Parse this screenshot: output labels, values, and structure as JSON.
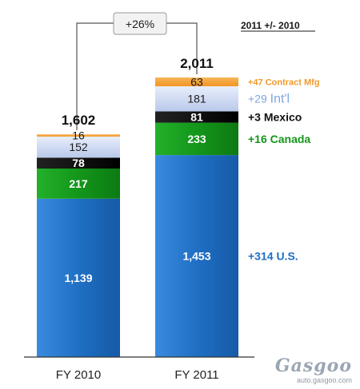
{
  "chart_data": {
    "type": "bar",
    "stacked": true,
    "categories": [
      "FY 2010",
      "FY 2011"
    ],
    "totals": [
      "1,602",
      "2,011"
    ],
    "series": [
      {
        "name": "U.S.",
        "values": [
          1139,
          1453
        ],
        "labels": [
          "1,139",
          "1,453"
        ],
        "delta": "+314",
        "color": "#1f6fc4"
      },
      {
        "name": "Canada",
        "values": [
          217,
          233
        ],
        "labels": [
          "217",
          "233"
        ],
        "delta": "+16",
        "color": "#14961b"
      },
      {
        "name": "Mexico",
        "values": [
          78,
          81
        ],
        "labels": [
          "78",
          "81"
        ],
        "delta": "+3",
        "color": "#111111"
      },
      {
        "name": "Int'l",
        "values": [
          152,
          181
        ],
        "labels": [
          "152",
          "181"
        ],
        "delta": "+29",
        "color": "#c7d3ee"
      },
      {
        "name": "Contract Mfg",
        "values": [
          16,
          63
        ],
        "labels": [
          "16",
          "63"
        ],
        "delta": "+47",
        "color": "#f5a43b"
      }
    ],
    "legend_header": "2011 +/- 2010",
    "growth_label": "+26%",
    "ylim": [
      0,
      2011
    ]
  },
  "legend_colors": {
    "U.S.": "#1f6fc4",
    "Canada": "#14961b",
    "Mexico": "#111111",
    "Int'l": "#7fa6e0",
    "Contract Mfg": "#f09a2a"
  },
  "watermark": {
    "logo": "Gasgoo",
    "url": "auto.gasgoo.com"
  }
}
